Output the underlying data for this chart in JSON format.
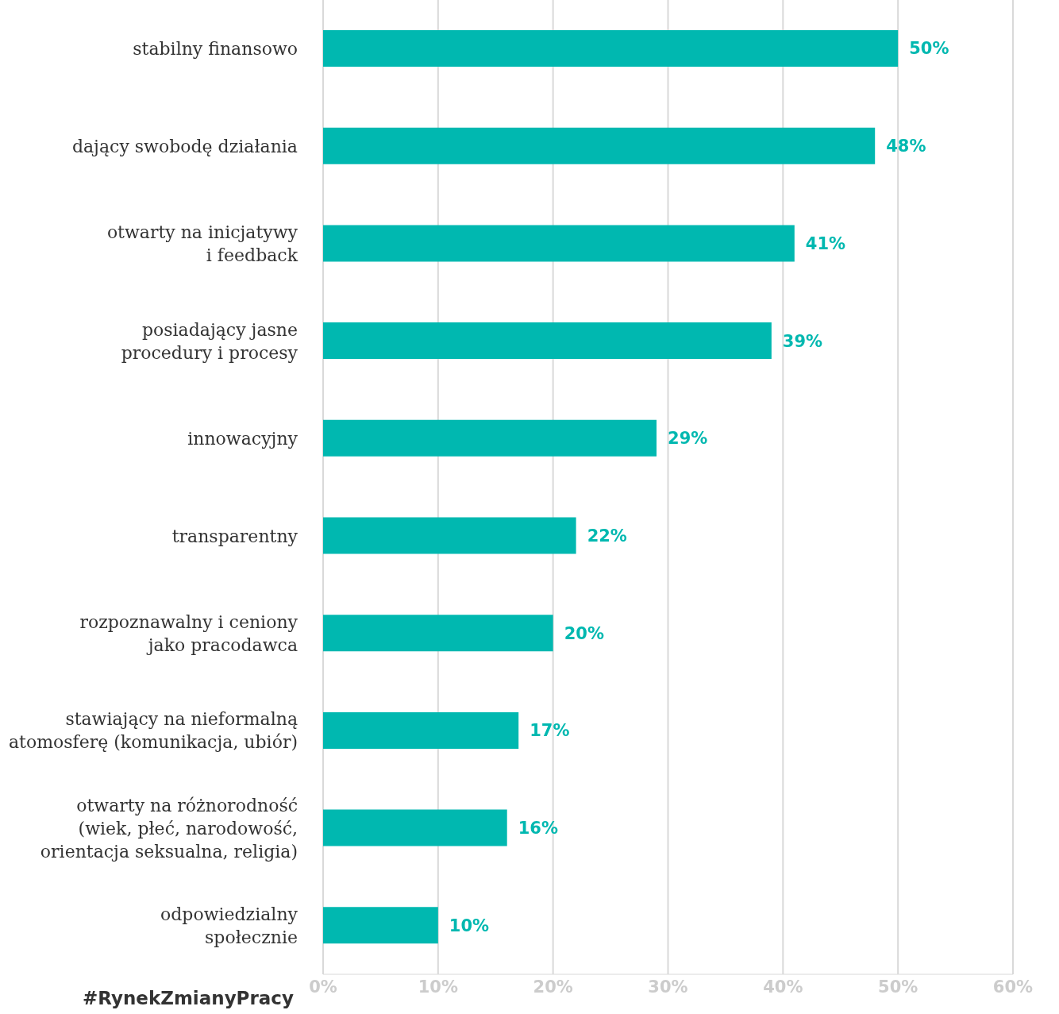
{
  "chart_data": {
    "type": "bar",
    "orientation": "horizontal",
    "categories": [
      "stabilny finansowo",
      "dający swobodę działania",
      "otwarty na inicjatywy\ni feedback",
      "posiadający jasne\nprocedury i procesy",
      "innowacyjny",
      "transparentny",
      "rozpoznawalny i ceniony\njako pracodawca",
      "stawiający na nieformalną\natomosferę (komunikacja, ubiór)",
      "otwarty na różnorodność\n(wiek, płeć, narodowość,\norientacja seksualna, religia)",
      "odpowiedzialny\nspołecznie"
    ],
    "values": [
      50,
      48,
      41,
      39,
      29,
      22,
      20,
      17,
      16,
      10
    ],
    "value_labels": [
      "50%",
      "48%",
      "41%",
      "39%",
      "29%",
      "22%",
      "20%",
      "17%",
      "16%",
      "10%"
    ],
    "color": "#00b8b0",
    "xlim": [
      0,
      60
    ],
    "xticks": [
      {
        "value": 0,
        "label": "0%"
      },
      {
        "value": 10,
        "label": "10%"
      },
      {
        "value": 20,
        "label": "20%"
      },
      {
        "value": 30,
        "label": "30%"
      },
      {
        "value": 40,
        "label": "40%"
      },
      {
        "value": 50,
        "label": "50%"
      },
      {
        "value": 60,
        "label": "60%"
      }
    ],
    "grid": "x",
    "legend": false,
    "annotations": [
      "#RynekZmianyPracy"
    ]
  }
}
